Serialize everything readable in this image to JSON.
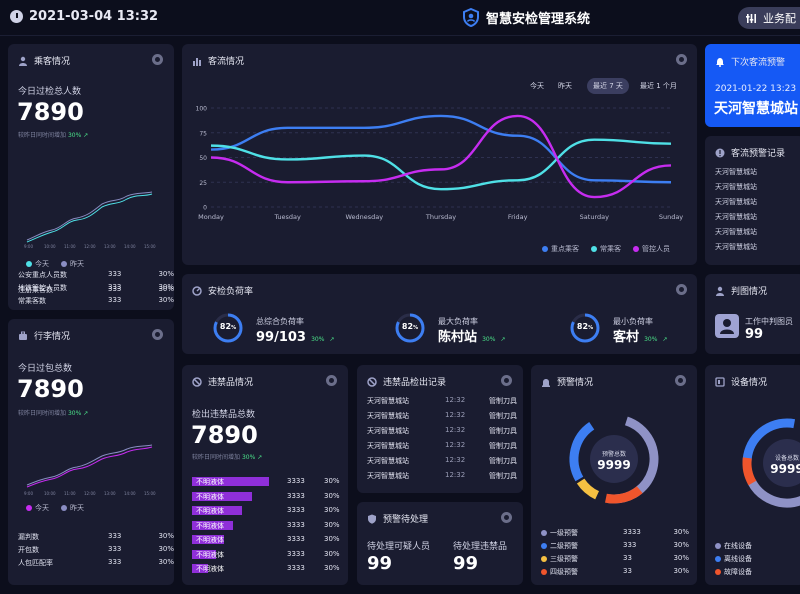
{
  "header": {
    "datetime": "2021-03-04  13:32",
    "title": "智慧安检管理系统",
    "biz_label": "业务配"
  },
  "passenger": {
    "title": "乘客情况",
    "subtitle": "今日过检总人数",
    "value": "7890",
    "compare": "较昨日同时间增加",
    "compare_pct": "30%",
    "x_ticks": [
      "9:00",
      "10:00",
      "11:00",
      "12:00",
      "13:00",
      "14:00",
      "15:00"
    ],
    "legend": [
      "今天",
      "昨天"
    ],
    "rows": [
      {
        "label": "注册乘客数",
        "value": "333",
        "pct": "30%"
      },
      {
        "label": "公安重点人员数",
        "value": "333",
        "pct": "30%"
      },
      {
        "label": "地铁管控人员数",
        "value": "333",
        "pct": "30%"
      },
      {
        "label": "常乘客数",
        "value": "333",
        "pct": "30%"
      }
    ]
  },
  "luggage": {
    "title": "行李情况",
    "subtitle": "今日过包总数",
    "value": "7890",
    "compare": "较昨日同时间增加",
    "compare_pct": "30%",
    "x_ticks": [
      "9:00",
      "10:00",
      "11:00",
      "12:00",
      "13:00",
      "14:00",
      "15:00"
    ],
    "legend": [
      "今天",
      "昨天"
    ],
    "rows": [
      {
        "label": "漏判数",
        "value": "333",
        "pct": "30%"
      },
      {
        "label": "开包数",
        "value": "333",
        "pct": "30%"
      },
      {
        "label": "人包匹配率",
        "value": "333",
        "pct": "30%"
      }
    ]
  },
  "flow": {
    "title": "客流情况",
    "ranges": [
      "今天",
      "昨天",
      "最近 7 天",
      "最近 1 个月"
    ],
    "legend": [
      "重点乘客",
      "常乘客",
      "管控人员"
    ]
  },
  "chart_data": {
    "type": "line",
    "x": [
      "Monday",
      "Tuesday",
      "Wednesday",
      "Thursday",
      "Friday",
      "Saturday",
      "Sunday"
    ],
    "ylim": [
      0,
      100
    ],
    "yticks": [
      0,
      25,
      50,
      75,
      100
    ],
    "series": [
      {
        "name": "重点乘客",
        "color": "#3d7ef2",
        "values": [
          58,
          80,
          80,
          92,
          72,
          27,
          25
        ]
      },
      {
        "name": "常乘客",
        "color": "#4fe0e6",
        "values": [
          62,
          48,
          52,
          18,
          27,
          68,
          64
        ]
      },
      {
        "name": "管控人员",
        "color": "#c62cf0",
        "values": [
          50,
          25,
          26,
          38,
          92,
          10,
          42
        ]
      }
    ]
  },
  "load": {
    "title": "安检负荷率",
    "items": [
      {
        "pct": "82",
        "label": "总综合负荷率",
        "value": "99/103",
        "cmp": "30%"
      },
      {
        "pct": "82",
        "label": "最大负荷率",
        "value": "陈村站",
        "cmp": "30%"
      },
      {
        "pct": "82",
        "label": "最小负荷率",
        "value": "客村",
        "cmp": "30%"
      }
    ]
  },
  "forecast": {
    "title": "下次客流预警",
    "time": "2021-01-22 13:23",
    "station": "天河智慧城站"
  },
  "flow_records": {
    "title": "客流预警记录",
    "items": [
      "天河智慧城站",
      "天河智慧城站",
      "天河智慧城站",
      "天河智慧城站",
      "天河智慧城站",
      "天河智慧城站",
      "天河智慧城站"
    ]
  },
  "judge": {
    "title": "判图情况",
    "label": "工作中判图员",
    "value": "99"
  },
  "contraband": {
    "title": "违禁品情况",
    "subtitle": "检出违禁品总数",
    "value": "7890",
    "compare": "较昨日同时间增加",
    "compare_pct": "30%",
    "bars": [
      {
        "label": "不明液体",
        "value": "3333",
        "pct": "30%",
        "fill": 0.85
      },
      {
        "label": "不明液体",
        "value": "3333",
        "pct": "30%",
        "fill": 0.67
      },
      {
        "label": "不明液体",
        "value": "3333",
        "pct": "30%",
        "fill": 0.55
      },
      {
        "label": "不明液体",
        "value": "3333",
        "pct": "30%",
        "fill": 0.45
      },
      {
        "label": "不明液体",
        "value": "3333",
        "pct": "30%",
        "fill": 0.35
      },
      {
        "label": "不明液体",
        "value": "3333",
        "pct": "30%",
        "fill": 0.27
      },
      {
        "label": "不明液体",
        "value": "3333",
        "pct": "30%",
        "fill": 0.18
      }
    ]
  },
  "detect_records": {
    "title": "违禁品检出记录",
    "rows": [
      {
        "station": "天河智慧城站",
        "time": "12:32",
        "type": "管制刀具"
      },
      {
        "station": "天河智慧城站",
        "time": "12:32",
        "type": "管制刀具"
      },
      {
        "station": "天河智慧城站",
        "time": "12:32",
        "type": "管制刀具"
      },
      {
        "station": "天河智慧城站",
        "time": "12:32",
        "type": "管制刀具"
      },
      {
        "station": "天河智慧城站",
        "time": "12:32",
        "type": "管制刀具"
      },
      {
        "station": "天河智慧城站",
        "time": "12:32",
        "type": "管制刀具"
      }
    ]
  },
  "pending": {
    "title": "预警待处理",
    "a_label": "待处理可疑人员",
    "a_value": "99",
    "b_label": "待处理违禁品",
    "b_value": "99"
  },
  "alarm": {
    "title": "预警情况",
    "center_label": "预警总数",
    "center_value": "9999",
    "rows": [
      {
        "label": "一级预警",
        "value": "3333",
        "pct": "30%",
        "color": "#8f92c6"
      },
      {
        "label": "二级预警",
        "value": "333",
        "pct": "30%",
        "color": "#3d7ef2"
      },
      {
        "label": "三级预警",
        "value": "33",
        "pct": "30%",
        "color": "#f5c042"
      },
      {
        "label": "四级预警",
        "value": "33",
        "pct": "30%",
        "color": "#f0552c"
      }
    ]
  },
  "device": {
    "title": "设备情况",
    "center_label": "设备总数",
    "center_value": "9999",
    "rows": [
      {
        "label": "在线设备",
        "color": "#8f92c6"
      },
      {
        "label": "离线设备",
        "color": "#3d7ef2"
      },
      {
        "label": "故障设备",
        "color": "#f0552c"
      }
    ]
  }
}
